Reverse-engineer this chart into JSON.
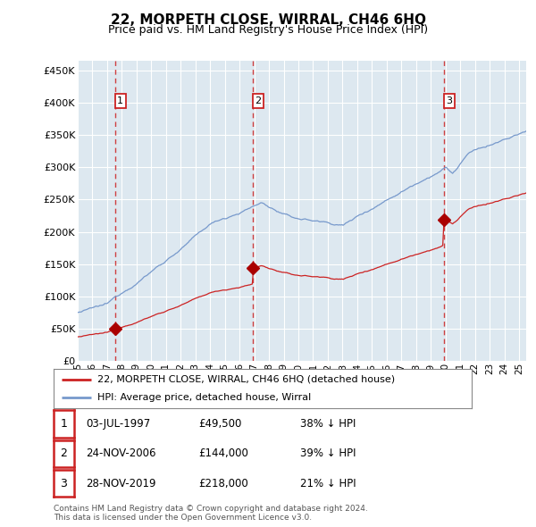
{
  "title": "22, MORPETH CLOSE, WIRRAL, CH46 6HQ",
  "subtitle": "Price paid vs. HM Land Registry's House Price Index (HPI)",
  "ytick_values": [
    0,
    50000,
    100000,
    150000,
    200000,
    250000,
    300000,
    350000,
    400000,
    450000
  ],
  "ylim": [
    0,
    465000
  ],
  "xlim_start": 1995.0,
  "xlim_end": 2025.5,
  "sale_dates": [
    1997.54,
    2006.9,
    2019.9
  ],
  "sale_prices": [
    49500,
    144000,
    218000
  ],
  "sale_labels": [
    "1",
    "2",
    "3"
  ],
  "dashed_line_color": "#cc2222",
  "sale_dot_color": "#aa0000",
  "hpi_line_color": "#7799cc",
  "price_line_color": "#cc2222",
  "background_color": "#dde8f0",
  "grid_color": "#ffffff",
  "legend_entries": [
    "22, MORPETH CLOSE, WIRRAL, CH46 6HQ (detached house)",
    "HPI: Average price, detached house, Wirral"
  ],
  "table_rows": [
    [
      "1",
      "03-JUL-1997",
      "£49,500",
      "38% ↓ HPI"
    ],
    [
      "2",
      "24-NOV-2006",
      "£144,000",
      "39% ↓ HPI"
    ],
    [
      "3",
      "28-NOV-2019",
      "£218,000",
      "21% ↓ HPI"
    ]
  ],
  "footnote": "Contains HM Land Registry data © Crown copyright and database right 2024.\nThis data is licensed under the Open Government Licence v3.0.",
  "x_tick_years": [
    1995,
    1996,
    1997,
    1998,
    1999,
    2000,
    2001,
    2002,
    2003,
    2004,
    2005,
    2006,
    2007,
    2008,
    2009,
    2010,
    2011,
    2012,
    2013,
    2014,
    2015,
    2016,
    2017,
    2018,
    2019,
    2020,
    2021,
    2022,
    2023,
    2024,
    2025
  ]
}
